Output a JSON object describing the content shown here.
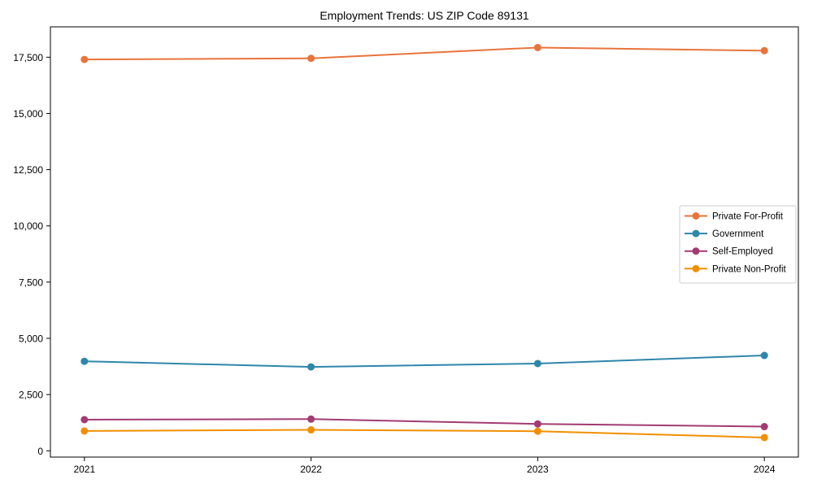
{
  "title": "Employment Trends: US ZIP Code 89131",
  "chart_data": {
    "type": "line",
    "title": "Employment Trends: US ZIP Code 89131",
    "xlabel": "",
    "ylabel": "",
    "x": [
      2021,
      2022,
      2023,
      2024
    ],
    "x_tick_labels": [
      "2021",
      "2022",
      "2023",
      "2024"
    ],
    "yticks": [
      0,
      2500,
      5000,
      7500,
      10000,
      12500,
      15000,
      17500
    ],
    "ytick_labels": [
      "0",
      "2,500",
      "5,000",
      "7,500",
      "10,000",
      "12,500",
      "15,000",
      "17,500"
    ],
    "xlim": [
      2020.85,
      2024.15
    ],
    "ylim": [
      -280,
      18850
    ],
    "grid": false,
    "legend_position": "center-right",
    "marker": "circle",
    "series": [
      {
        "name": "Private For-Profit",
        "color": "#E8743B",
        "values": [
          17400,
          17450,
          17930,
          17790
        ]
      },
      {
        "name": "Government",
        "color": "#2E86AB",
        "values": [
          3980,
          3730,
          3880,
          4240
        ]
      },
      {
        "name": "Self-Employed",
        "color": "#A23B72",
        "values": [
          1385,
          1410,
          1195,
          1075
        ]
      },
      {
        "name": "Private Non-Profit",
        "color": "#F18F01",
        "values": [
          880,
          930,
          870,
          590
        ]
      }
    ],
    "colors": {
      "background": "#ffffff",
      "spine": "#000000",
      "text": "#000000",
      "legend_border": "#cccccc",
      "legend_background": "#ffffff"
    }
  }
}
